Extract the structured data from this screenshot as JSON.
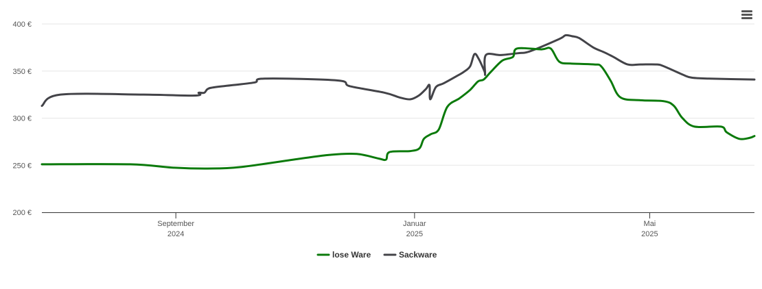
{
  "chart_data": {
    "type": "line",
    "title": "",
    "xlabel": "",
    "ylabel": "",
    "ylim": [
      200,
      400
    ],
    "y_ticks": [
      {
        "value": 200,
        "label": "200 €"
      },
      {
        "value": 250,
        "label": "250 €"
      },
      {
        "value": 300,
        "label": "300 €"
      },
      {
        "value": 350,
        "label": "350 €"
      },
      {
        "value": 400,
        "label": "400 €"
      }
    ],
    "x_range": [
      0,
      100
    ],
    "x_ticks": [
      {
        "pos": 18.8,
        "line1": "September",
        "line2": "2024"
      },
      {
        "pos": 52.3,
        "line1": "Januar",
        "line2": "2025"
      },
      {
        "pos": 85.3,
        "line1": "Mai",
        "line2": "2025"
      }
    ],
    "grid": true,
    "legend_position": "bottom-center",
    "series": [
      {
        "name": "lose Ware",
        "color": "#0b7a0b",
        "points": [
          [
            0,
            251
          ],
          [
            12.4,
            251
          ],
          [
            18.3,
            247.5
          ],
          [
            23.2,
            246.5
          ],
          [
            27.8,
            248
          ],
          [
            36.3,
            257
          ],
          [
            40.4,
            261
          ],
          [
            44.2,
            262
          ],
          [
            47.3,
            257
          ],
          [
            48.3,
            256
          ],
          [
            48.8,
            264
          ],
          [
            51.7,
            265
          ],
          [
            53.0,
            268
          ],
          [
            53.6,
            278
          ],
          [
            54.6,
            283
          ],
          [
            55.7,
            288
          ],
          [
            56.9,
            312
          ],
          [
            58.6,
            321
          ],
          [
            60.1,
            330
          ],
          [
            61.2,
            339
          ],
          [
            62.0,
            341
          ],
          [
            63.0,
            349
          ],
          [
            64.6,
            361
          ],
          [
            66.1,
            365
          ],
          [
            66.7,
            374
          ],
          [
            70.1,
            373
          ],
          [
            71.4,
            374
          ],
          [
            72.6,
            360
          ],
          [
            74.2,
            358
          ],
          [
            77.5,
            357
          ],
          [
            78.5,
            355
          ],
          [
            79.8,
            340
          ],
          [
            81.2,
            322
          ],
          [
            84.0,
            319
          ],
          [
            87.3,
            318
          ],
          [
            88.7,
            313
          ],
          [
            89.9,
            300
          ],
          [
            91.6,
            291
          ],
          [
            95.3,
            291
          ],
          [
            96.1,
            285
          ],
          [
            97.9,
            278
          ],
          [
            99.3,
            279
          ],
          [
            100,
            281
          ]
        ]
      },
      {
        "name": "Sackware",
        "color": "#434348",
        "points": [
          [
            0,
            313
          ],
          [
            2.6,
            325
          ],
          [
            14.3,
            325
          ],
          [
            21.6,
            324
          ],
          [
            22.0,
            327
          ],
          [
            22.8,
            327
          ],
          [
            23.6,
            332
          ],
          [
            26.7,
            335
          ],
          [
            29.9,
            338
          ],
          [
            31.3,
            342
          ],
          [
            41.5,
            340
          ],
          [
            43.2,
            334
          ],
          [
            48.1,
            327
          ],
          [
            50.2,
            322
          ],
          [
            51.7,
            320
          ],
          [
            52.9,
            324
          ],
          [
            53.9,
            331
          ],
          [
            54.4,
            335
          ],
          [
            54.5,
            320
          ],
          [
            55.3,
            333
          ],
          [
            56.4,
            337
          ],
          [
            58.3,
            345
          ],
          [
            59.2,
            349
          ],
          [
            60.1,
            355
          ],
          [
            60.7,
            368
          ],
          [
            61.3,
            363
          ],
          [
            62.1,
            350
          ],
          [
            62.2,
            347
          ],
          [
            62.3,
            367
          ],
          [
            64.4,
            367
          ],
          [
            66.9,
            369
          ],
          [
            68.5,
            371
          ],
          [
            72.6,
            384
          ],
          [
            73.5,
            388
          ],
          [
            74.4,
            387
          ],
          [
            75.4,
            385
          ],
          [
            77.4,
            375
          ],
          [
            78.9,
            370
          ],
          [
            80.2,
            365
          ],
          [
            82.2,
            357
          ],
          [
            84.0,
            357
          ],
          [
            86.3,
            357
          ],
          [
            87.3,
            355
          ],
          [
            90.0,
            346
          ],
          [
            91.2,
            343
          ],
          [
            93.6,
            342
          ],
          [
            100,
            341
          ]
        ]
      }
    ]
  }
}
